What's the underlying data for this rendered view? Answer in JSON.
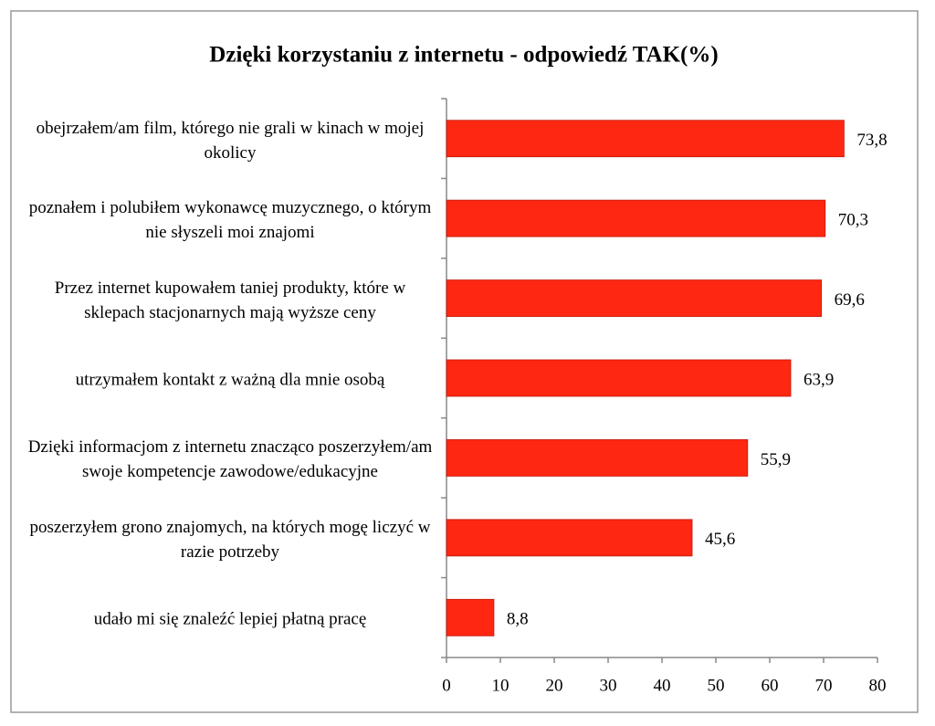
{
  "chart_data": {
    "type": "bar",
    "orientation": "horizontal",
    "title": "Dzięki korzystaniu z internetu - odpowiedź TAK(%)",
    "categories": [
      "obejrzałem/am film, którego nie grali w kinach w mojej okolicy",
      "poznałem i polubiłem wykonawcę muzycznego, o którym nie słyszeli moi znajomi",
      "Przez internet kupowałem taniej produkty, które w sklepach stacjonarnych mają wyższe ceny",
      "utrzymałem kontakt z ważną dla mnie osobą",
      "Dzięki informacjom z internetu znacząco poszerzyłem/am swoje kompetencje zawodowe/edukacyjne",
      "poszerzyłem grono znajomych, na których mogę liczyć w razie potrzeby",
      "udało mi się znaleźć lepiej płatną pracę"
    ],
    "values": [
      73.8,
      70.3,
      69.6,
      63.9,
      55.9,
      45.6,
      8.8
    ],
    "value_labels": [
      "73,8",
      "70,3",
      "69,6",
      "63,9",
      "55,9",
      "45,6",
      "8,8"
    ],
    "color": "#fe2712",
    "xlim": [
      0,
      80
    ],
    "xticks": [
      0,
      10,
      20,
      30,
      40,
      50,
      60,
      70,
      80
    ],
    "grid": false
  }
}
